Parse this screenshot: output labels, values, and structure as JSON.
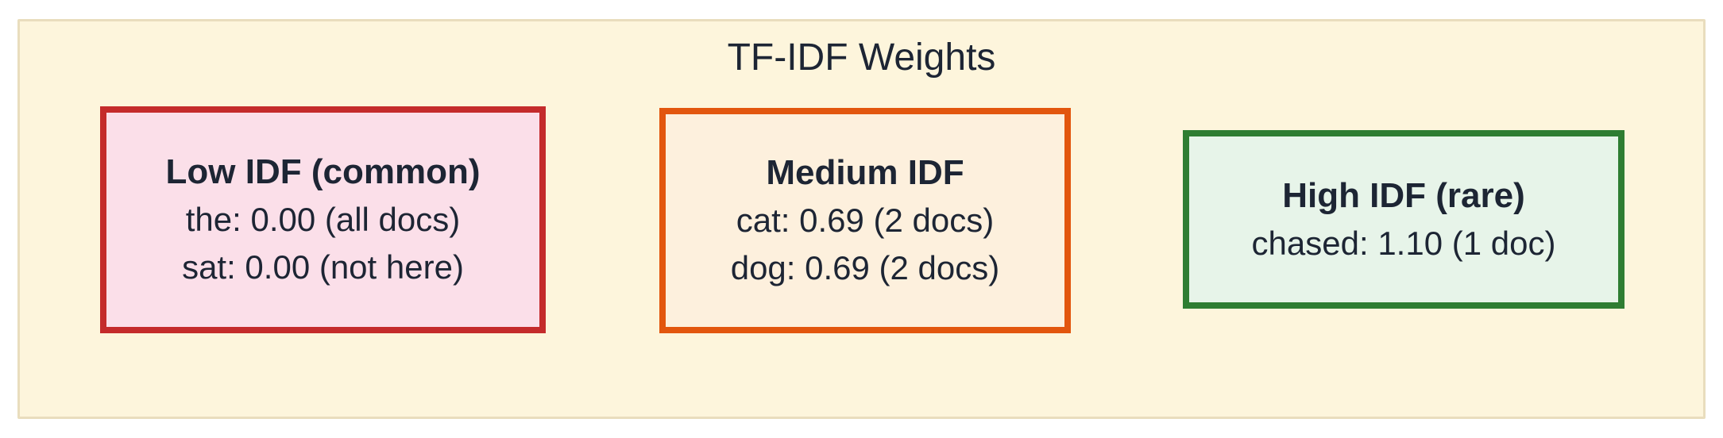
{
  "figure": {
    "title": "TF-IDF Weights",
    "colors": {
      "page_bg": "#ffffff",
      "panel_bg": "#fdf5dc",
      "panel_border": "#e9ddbd",
      "text": "#1d2534"
    },
    "boxes": [
      {
        "id": "low-idf",
        "title": "Low IDF (common)",
        "lines": [
          "the: 0.00 (all docs)",
          "sat: 0.00 (not here)"
        ],
        "border_color": "#c42b2b",
        "fill_color": "#fbdfe9"
      },
      {
        "id": "medium-idf",
        "title": "Medium IDF",
        "lines": [
          "cat: 0.69 (2 docs)",
          "dog: 0.69 (2 docs)"
        ],
        "border_color": "#e2560e",
        "fill_color": "#fdf0dd"
      },
      {
        "id": "high-idf",
        "title": "High IDF (rare)",
        "lines": [
          "chased: 1.10 (1 doc)"
        ],
        "border_color": "#2e7d32",
        "fill_color": "#e7f4e9"
      }
    ]
  }
}
